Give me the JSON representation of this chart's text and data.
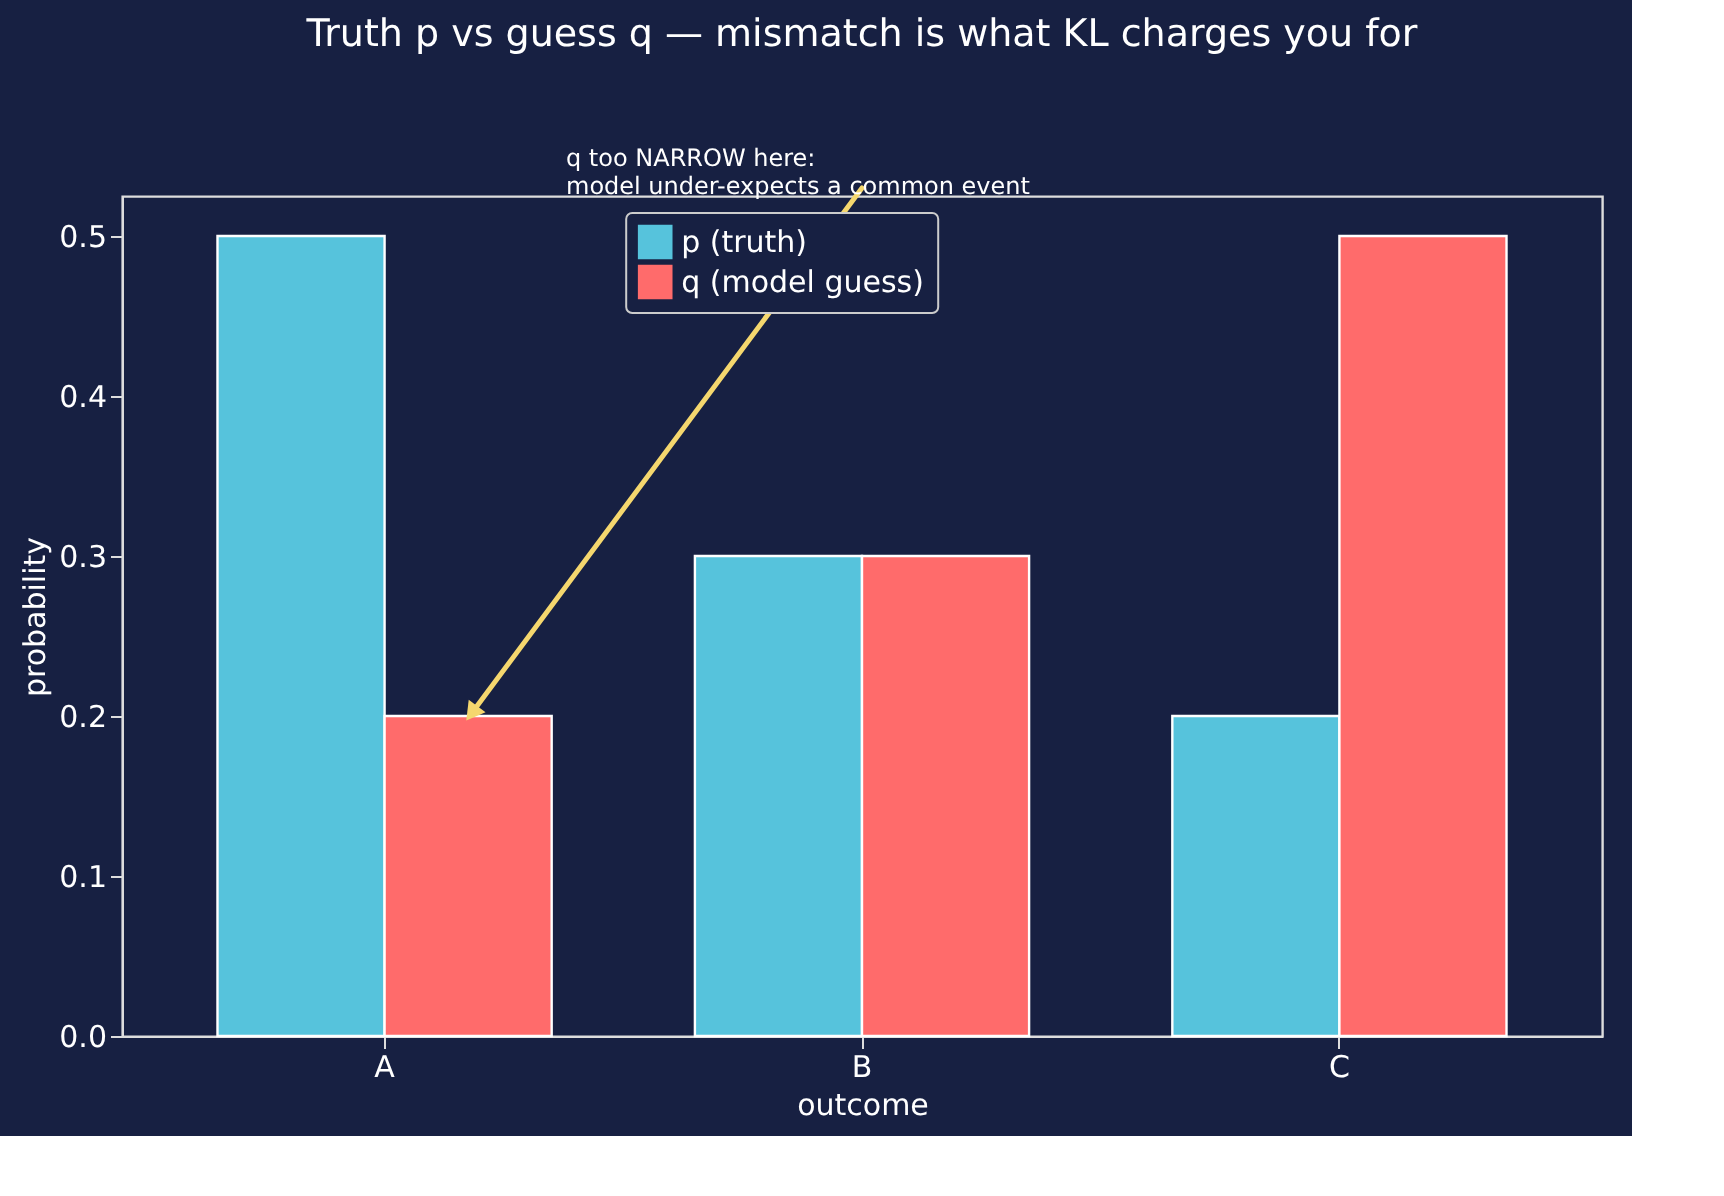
{
  "chart_data": {
    "type": "bar",
    "title": "Truth p vs guess q — mismatch is what KL charges you for",
    "xlabel": "outcome",
    "ylabel": "probability",
    "categories": [
      "A",
      "B",
      "C"
    ],
    "series": [
      {
        "name": "p (truth)",
        "color": "#56c3dc",
        "values": [
          0.5,
          0.3,
          0.2
        ]
      },
      {
        "name": "q (model guess)",
        "color": "#ff6b6b",
        "values": [
          0.2,
          0.3,
          0.5
        ]
      }
    ],
    "ylim": [
      0,
      0.525
    ],
    "yticks": [
      {
        "value": 0,
        "label": "0.0"
      },
      0.1,
      0.2,
      0.3,
      0.4,
      0.5
    ],
    "grid": false,
    "legend": "top",
    "annotations": [
      "q too NARROW here:\nmodel under-expects a common event"
    ]
  }
}
